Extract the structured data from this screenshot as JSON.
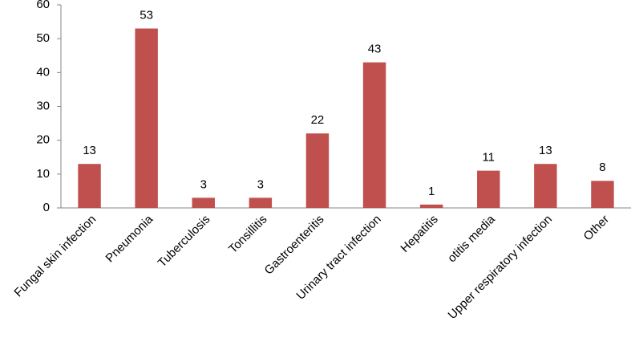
{
  "chart_data": {
    "type": "bar",
    "categories": [
      "Fungal skin infection",
      "Pneumonia",
      "Tuberculosis",
      "Tonsillitis",
      "Gastroenteritis",
      "Urinary tract infection",
      "Hepatitis",
      "otitis media",
      "Upper respiratory infection",
      "Other"
    ],
    "values": [
      13,
      53,
      3,
      3,
      22,
      43,
      1,
      11,
      13,
      8
    ],
    "color": "#c0504d",
    "ylim": [
      0,
      60
    ],
    "yticks": [
      0,
      10,
      20,
      30,
      40,
      50,
      60
    ],
    "grid": false
  }
}
